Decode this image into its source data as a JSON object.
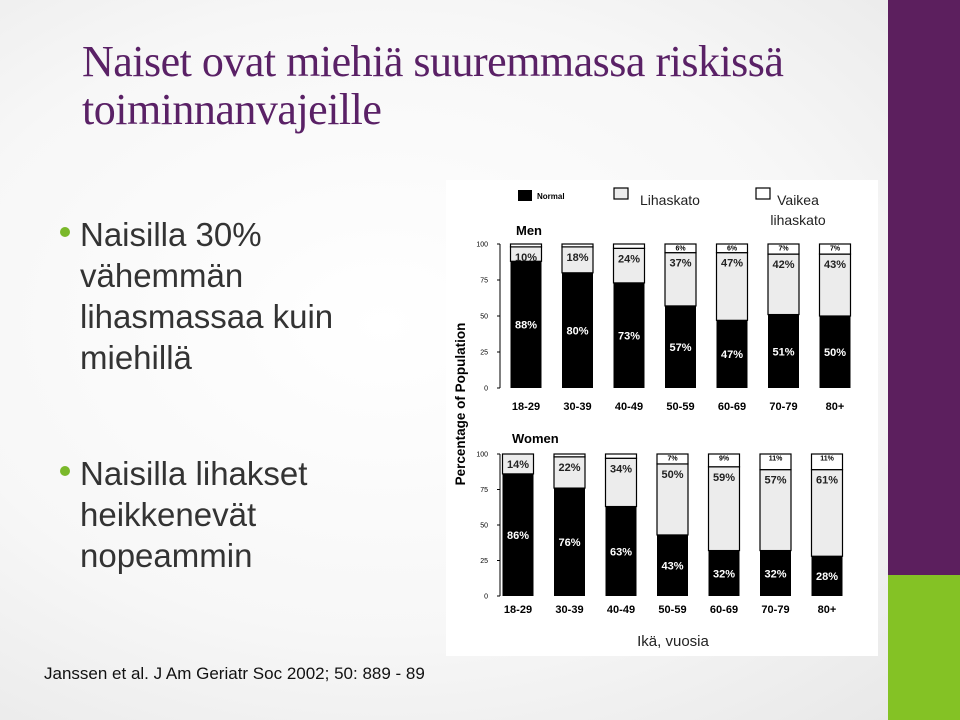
{
  "title": "Naiset ovat miehiä suuremmassa riskissä toiminnanvajeille",
  "bullets": [
    "Naisilla 30% vähemmän lihasmassaa kuin miehillä",
    "Naisilla lihakset heikkenevät nopeammin"
  ],
  "citation": "Janssen et al. J Am Geriatr Soc 2002; 50: 889 - 89",
  "colors": {
    "title": "#5a2166",
    "bullet_dot": "#7ab82a",
    "right_band": "#5c1f5e",
    "right_accent": "#84c225"
  },
  "chart_data": {
    "type": "bar",
    "stacked": true,
    "ylabel": "Percentage of Population",
    "xlabel": "Ikä, vuosia",
    "legend": {
      "placement": "top-right",
      "entries": [
        "Normal",
        "Lihaskato",
        "Vaikea lihaskato"
      ]
    },
    "categories": [
      "18-29",
      "30-39",
      "40-49",
      "50-59",
      "60-69",
      "70-79",
      "80+"
    ],
    "y_ticks": [
      "100",
      "75",
      "50",
      "25",
      "0"
    ],
    "ylim": [
      0,
      100
    ],
    "panels": [
      {
        "title": "Men",
        "series": [
          {
            "name": "Normal",
            "values": [
              88,
              80,
              73,
              57,
              47,
              51,
              50
            ],
            "labels": [
              "88%",
              "80%",
              "73%",
              "57%",
              "47%",
              "51%",
              "50%"
            ]
          },
          {
            "name": "Lihaskato",
            "values": [
              10,
              18,
              24,
              37,
              47,
              42,
              43
            ],
            "labels": [
              "10%",
              "18%",
              "24%",
              "37%",
              "47%",
              "42%",
              "43%"
            ]
          },
          {
            "name": "Vaikea lihaskato",
            "values": [
              2,
              2,
              3,
              6,
              6,
              7,
              7
            ],
            "labels": [
              "",
              "",
              "",
              "6%",
              "6%",
              "7%",
              "7%"
            ]
          }
        ]
      },
      {
        "title": "Women",
        "series": [
          {
            "name": "Normal",
            "values": [
              86,
              76,
              63,
              43,
              32,
              32,
              28
            ],
            "labels": [
              "86%",
              "76%",
              "63%",
              "43%",
              "32%",
              "32%",
              "28%"
            ]
          },
          {
            "name": "Lihaskato",
            "values": [
              14,
              22,
              34,
              50,
              59,
              57,
              61
            ],
            "labels": [
              "14%",
              "22%",
              "34%",
              "50%",
              "59%",
              "57%",
              "61%"
            ]
          },
          {
            "name": "Vaikea lihaskato",
            "values": [
              0,
              2,
              3,
              7,
              9,
              11,
              11
            ],
            "labels": [
              "",
              "",
              "",
              "7%",
              "9%",
              "11%",
              "11%"
            ]
          }
        ]
      }
    ]
  }
}
